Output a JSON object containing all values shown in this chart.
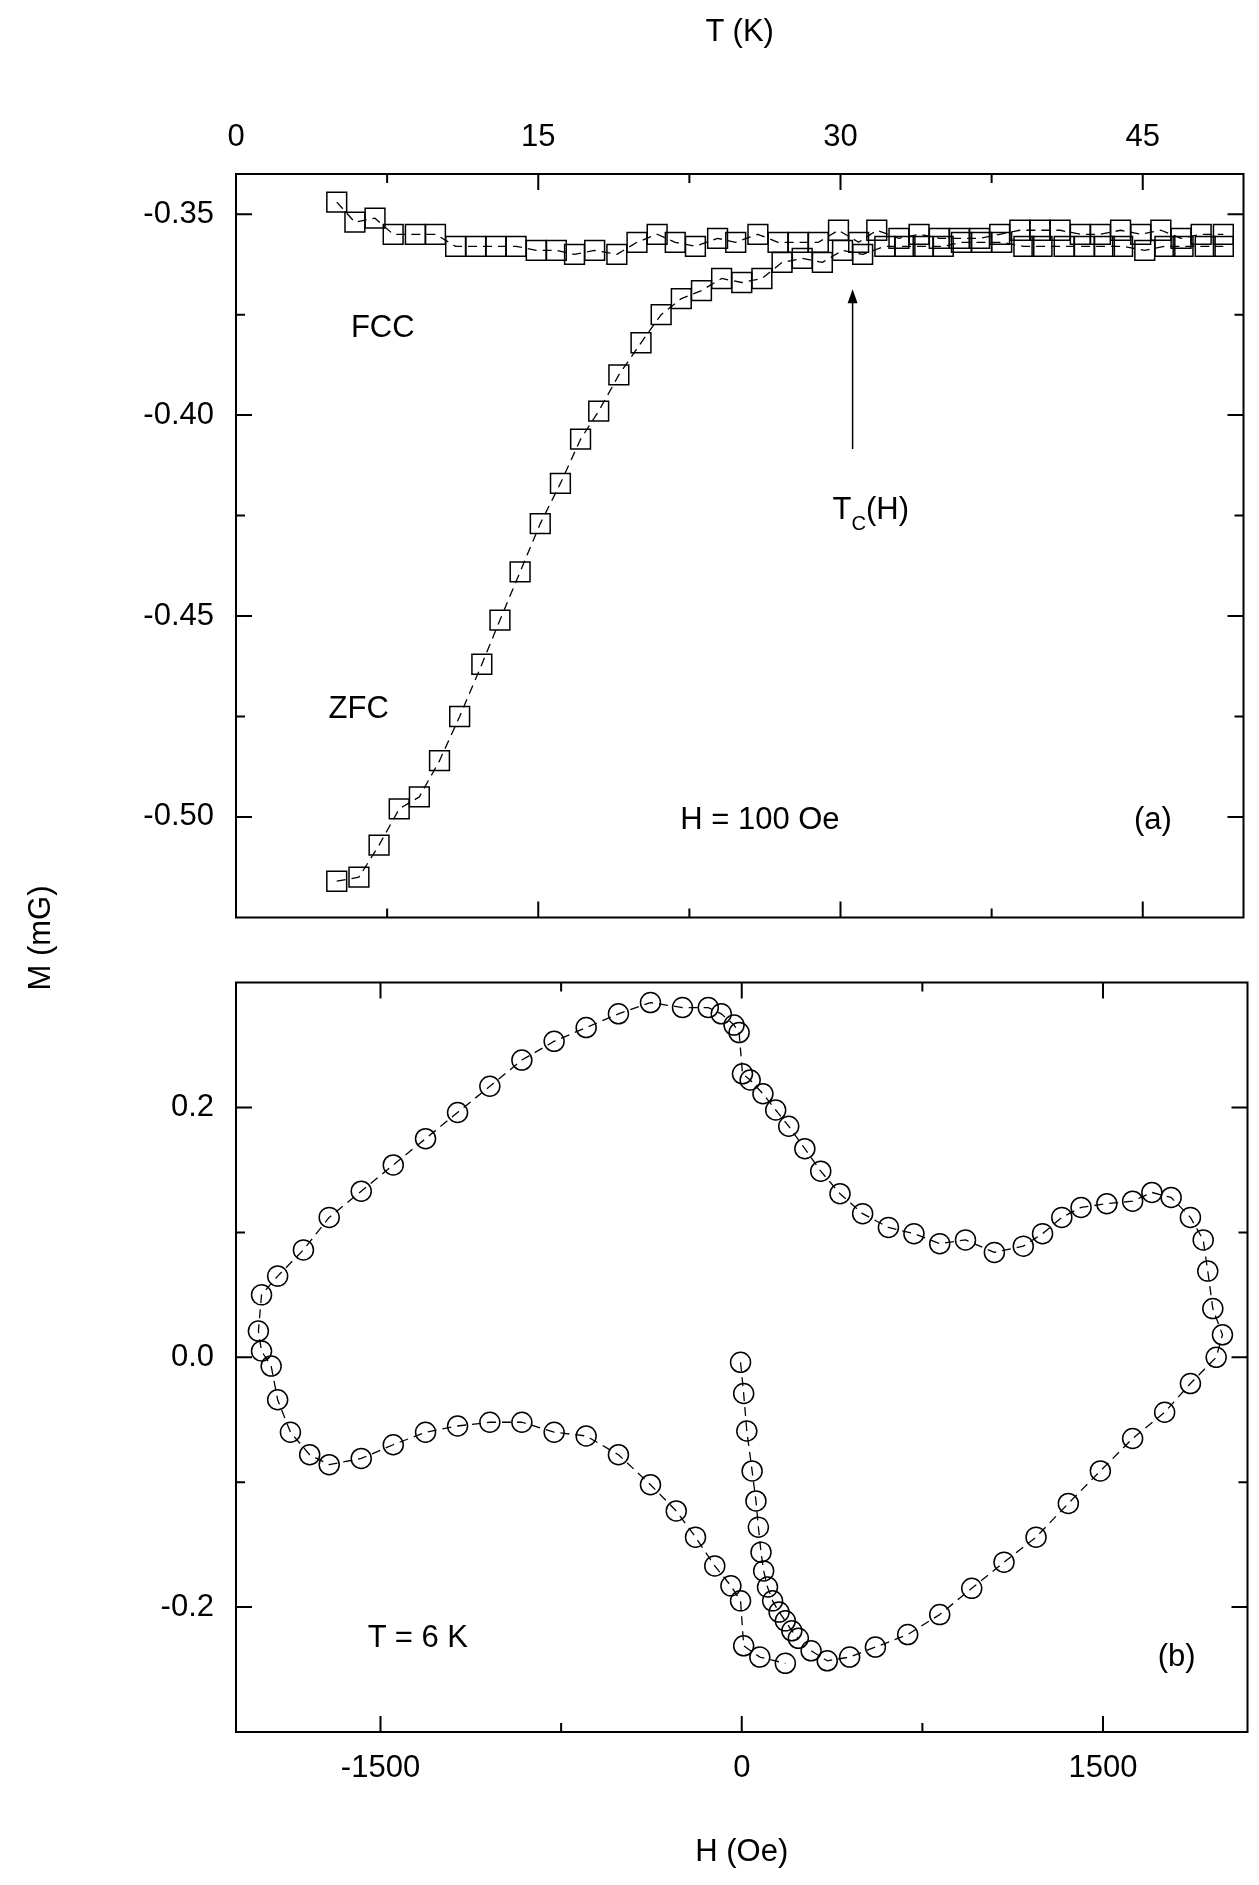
{
  "chart_data": [
    {
      "type": "line",
      "xlabel": "T (K)",
      "ylabel": "M (mG)",
      "marker": "square",
      "line_style": "dashed",
      "xlim": [
        0,
        50
      ],
      "ylim": [
        -0.525,
        -0.34
      ],
      "xticks": [
        0,
        {
          "value": 7.5,
          "label": null
        },
        15,
        {
          "value": 22.5,
          "label": null
        },
        30,
        {
          "value": 37.5,
          "label": null
        },
        45
      ],
      "yticks": [
        -0.35,
        {
          "value": -0.375,
          "label": null
        },
        {
          "value": -0.4,
          "label": "-0.40"
        },
        {
          "value": -0.425,
          "label": null
        },
        -0.45,
        {
          "value": -0.475,
          "label": null
        },
        {
          "value": -0.5,
          "label": "-0.50"
        }
      ],
      "series": [
        {
          "name": "FCC",
          "color": "#000000",
          "x": [
            5.0,
            5.9,
            6.9,
            7.8,
            8.9,
            9.9,
            10.9,
            11.9,
            12.9,
            13.9,
            14.9,
            15.9,
            16.8,
            17.8,
            18.9,
            19.9,
            20.9,
            21.8,
            22.8,
            23.9,
            24.8,
            25.9,
            26.9,
            27.9,
            28.9,
            29.9,
            30.9,
            31.8,
            32.9,
            33.9,
            34.9,
            35.9,
            36.9,
            37.9,
            38.9,
            39.9,
            40.9,
            41.9,
            42.9,
            43.9,
            44.9,
            45.9,
            46.9,
            47.9,
            49.0
          ],
          "values": [
            -0.347,
            -0.352,
            -0.351,
            -0.355,
            -0.355,
            -0.355,
            -0.358,
            -0.358,
            -0.358,
            -0.358,
            -0.359,
            -0.359,
            -0.36,
            -0.359,
            -0.36,
            -0.357,
            -0.355,
            -0.357,
            -0.358,
            -0.356,
            -0.357,
            -0.355,
            -0.357,
            -0.357,
            -0.357,
            -0.354,
            -0.357,
            -0.354,
            -0.356,
            -0.355,
            -0.356,
            -0.356,
            -0.356,
            -0.355,
            -0.354,
            -0.354,
            -0.354,
            -0.355,
            -0.355,
            -0.354,
            -0.355,
            -0.354,
            -0.356,
            -0.355,
            -0.355
          ]
        },
        {
          "name": "ZFC",
          "color": "#000000",
          "x": [
            5.0,
            6.1,
            7.1,
            8.1,
            9.1,
            10.1,
            11.1,
            12.2,
            13.1,
            14.1,
            15.1,
            16.1,
            17.1,
            18.0,
            19.0,
            20.1,
            21.1,
            22.1,
            23.1,
            24.1,
            25.1,
            26.1,
            27.1,
            28.1,
            29.1,
            30.1,
            31.1,
            32.2,
            33.2,
            34.1,
            35.1,
            36.0,
            37.0,
            38.0,
            39.1,
            40.0,
            41.1,
            42.1,
            43.1,
            44.0,
            45.1,
            46.1,
            47.0,
            48.1,
            49.0
          ],
          "values": [
            -0.516,
            -0.515,
            -0.507,
            -0.498,
            -0.495,
            -0.486,
            -0.475,
            -0.462,
            -0.451,
            -0.439,
            -0.427,
            -0.417,
            -0.406,
            -0.399,
            -0.39,
            -0.382,
            -0.375,
            -0.371,
            -0.369,
            -0.366,
            -0.367,
            -0.366,
            -0.362,
            -0.361,
            -0.362,
            -0.359,
            -0.36,
            -0.358,
            -0.358,
            -0.358,
            -0.358,
            -0.357,
            -0.357,
            -0.357,
            -0.358,
            -0.358,
            -0.358,
            -0.358,
            -0.358,
            -0.358,
            -0.359,
            -0.358,
            -0.358,
            -0.358,
            -0.358
          ]
        }
      ],
      "annotations": [
        "H = 100 Oe",
        "(a)",
        "T$_{C}$(H)"
      ]
    },
    {
      "type": "line",
      "xlabel": "H (Oe)",
      "marker": "circle",
      "line_style": "dashed",
      "xlim": [
        -2100,
        2100
      ],
      "ylim": [
        -0.3,
        0.3
      ],
      "xticks": [
        -1500,
        {
          "value": -750,
          "label": null
        },
        0,
        {
          "value": 750,
          "label": null
        },
        1500
      ],
      "yticks": [
        -0.2,
        {
          "value": -0.1,
          "label": null
        },
        {
          "value": 0,
          "label": "0.0"
        },
        {
          "value": 0.1,
          "label": null
        },
        0.2
      ],
      "series": [
        {
          "color": "#000000",
          "x": [
            -5,
            8,
            21,
            43,
            59,
            69,
            80,
            91,
            107,
            128,
            155,
            181,
            208,
            235
          ],
          "values": [
            -0.004,
            -0.029,
            -0.059,
            -0.091,
            -0.115,
            -0.136,
            -0.156,
            -0.171,
            -0.184,
            -0.195,
            -0.204,
            -0.211,
            -0.219,
            -0.225
          ]
        },
        {
          "color": "#000000",
          "x": [
            288,
            355,
            448,
            555,
            689,
            822,
            955,
            1089,
            1222,
            1356,
            1489,
            1623,
            1756,
            1863,
            1970,
            1996,
            1956,
            1935,
            1916,
            1863,
            1783,
            1703,
            1623,
            1516,
            1409,
            1329,
            1249,
            1169,
            1049,
            929,
            822,
            715,
            609,
            502,
            408,
            328,
            262,
            195,
            141,
            88,
            35,
            3,
            -11,
            -32,
            -85,
            -139,
            -246,
            -379,
            -512,
            -646,
            -779,
            -913,
            -1046,
            -1180,
            -1313,
            -1447,
            -1580,
            -1713,
            -1820,
            -1927,
            -1994,
            -2007,
            -1994,
            -1954,
            -1927,
            -1874,
            -1794,
            -1713,
            -1580,
            -1447,
            -1313,
            -1180,
            -1046,
            -913,
            -779,
            -646,
            -512,
            -379,
            -272,
            -192,
            -112,
            -45,
            -5,
            8,
            75,
            181
          ],
          "values": [
            -0.235,
            -0.243,
            -0.24,
            -0.232,
            -0.222,
            -0.206,
            -0.185,
            -0.164,
            -0.144,
            -0.117,
            -0.091,
            -0.065,
            -0.044,
            -0.021,
            0.0,
            0.018,
            0.039,
            0.069,
            0.094,
            0.112,
            0.128,
            0.132,
            0.125,
            0.123,
            0.12,
            0.112,
            0.099,
            0.089,
            0.084,
            0.094,
            0.091,
            0.099,
            0.104,
            0.115,
            0.131,
            0.149,
            0.167,
            0.185,
            0.198,
            0.211,
            0.222,
            0.227,
            0.26,
            0.266,
            0.275,
            0.28,
            0.28,
            0.284,
            0.275,
            0.264,
            0.253,
            0.238,
            0.217,
            0.196,
            0.175,
            0.154,
            0.133,
            0.112,
            0.086,
            0.065,
            0.05,
            0.021,
            0.005,
            -0.007,
            -0.034,
            -0.06,
            -0.078,
            -0.086,
            -0.081,
            -0.07,
            -0.06,
            -0.055,
            -0.052,
            -0.052,
            -0.06,
            -0.063,
            -0.078,
            -0.102,
            -0.123,
            -0.144,
            -0.167,
            -0.183,
            -0.195,
            -0.231,
            -0.24,
            -0.245
          ]
        }
      ],
      "annotations": [
        "T = 6 K",
        "(b)"
      ]
    }
  ]
}
